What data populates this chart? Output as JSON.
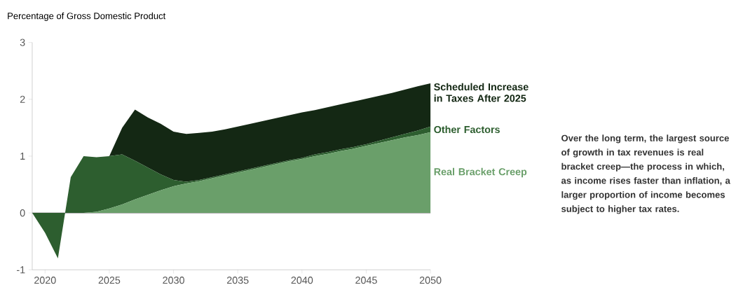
{
  "chart_data": {
    "type": "area",
    "stacked": true,
    "ylabel": "Percentage of Gross Domestic Product",
    "x": [
      2019,
      2020,
      2021,
      2022,
      2023,
      2024,
      2025,
      2026,
      2027,
      2028,
      2029,
      2030,
      2031,
      2032,
      2033,
      2034,
      2035,
      2036,
      2037,
      2038,
      2039,
      2040,
      2041,
      2042,
      2043,
      2044,
      2045,
      2046,
      2047,
      2048,
      2049,
      2050
    ],
    "series": [
      {
        "name": "Real Bracket Creep",
        "color": "#6a9f6a",
        "values": [
          0,
          0,
          0,
          0,
          0,
          0.02,
          0.08,
          0.15,
          0.24,
          0.32,
          0.4,
          0.47,
          0.52,
          0.56,
          0.61,
          0.66,
          0.71,
          0.76,
          0.81,
          0.86,
          0.91,
          0.95,
          1.0,
          1.04,
          1.09,
          1.13,
          1.18,
          1.23,
          1.28,
          1.33,
          1.37,
          1.42
        ]
      },
      {
        "name": "Other Factors",
        "color": "#2d5e2f",
        "values": [
          0,
          -0.35,
          -0.8,
          0.63,
          1.0,
          0.96,
          0.92,
          0.88,
          0.68,
          0.48,
          0.28,
          0.11,
          0.03,
          0.02,
          0.02,
          0.02,
          0.02,
          0.02,
          0.02,
          0.02,
          0.02,
          0.02,
          0.03,
          0.03,
          0.03,
          0.03,
          0.03,
          0.04,
          0.05,
          0.06,
          0.08,
          0.1
        ]
      },
      {
        "name": "Scheduled Increase in Taxes After 2025",
        "color": "#142814",
        "values": [
          0,
          0,
          0,
          0,
          0,
          0,
          0,
          0.47,
          0.9,
          0.88,
          0.89,
          0.85,
          0.84,
          0.83,
          0.8,
          0.79,
          0.79,
          0.79,
          0.79,
          0.79,
          0.79,
          0.8,
          0.78,
          0.79,
          0.79,
          0.8,
          0.8,
          0.79,
          0.78,
          0.78,
          0.78,
          0.76
        ]
      }
    ],
    "xlim": [
      2019,
      2050
    ],
    "xticks": [
      2020,
      2025,
      2030,
      2035,
      2040,
      2045,
      2050
    ],
    "ylim": [
      -1,
      3
    ],
    "yticks": [
      -1,
      0,
      1,
      2,
      3
    ],
    "ref_lines": [
      {
        "axis": "y",
        "value": 0
      }
    ],
    "legend": "right",
    "annotations": [
      "Over the long term, the largest source of growth in tax revenues is real bracket creep—the process in which, as income rises faster than inflation, a larger proportion of income becomes subject to higher tax rates."
    ]
  }
}
